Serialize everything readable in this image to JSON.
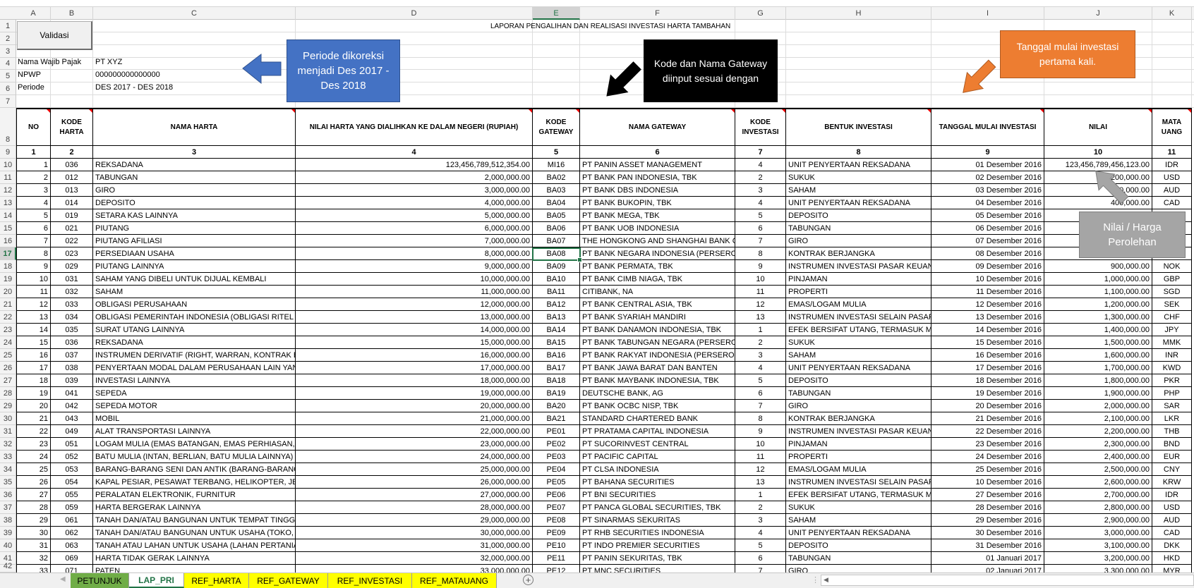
{
  "sheet": {
    "title": "LAPORAN PENGALIHAN DAN REALISASI INVESTASI HARTA TAMBAHAN",
    "validate_button": "Validasi",
    "selected_cell": "E17",
    "info": {
      "taxpayer_label": "Nama Wajib Pajak",
      "taxpayer_value": "PT XYZ",
      "npwp_label": "NPWP",
      "npwp_value": "000000000000000",
      "period_label": "Periode",
      "period_value": "DES 2017 - DES 2018"
    }
  },
  "columns": [
    "A",
    "B",
    "C",
    "D",
    "E",
    "F",
    "G",
    "H",
    "I",
    "J",
    "K"
  ],
  "row_numbers": [
    1,
    2,
    3,
    4,
    5,
    6,
    7,
    8,
    9,
    10,
    11,
    12,
    13,
    14,
    15,
    16,
    17,
    18,
    19,
    20,
    21,
    22,
    23,
    24,
    25,
    26,
    27,
    28,
    29,
    30,
    31,
    32,
    33,
    34,
    35,
    36,
    37,
    38,
    39,
    40,
    41,
    42
  ],
  "table_headers": [
    "NO",
    "KODE HARTA",
    "NAMA HARTA",
    "NILAI HARTA YANG DIALIHKAN KE DALAM NEGERI (RUPIAH)",
    "KODE GATEWAY",
    "NAMA GATEWAY",
    "KODE INVESTASI",
    "BENTUK INVESTASI",
    "TANGGAL MULAI INVESTASI",
    "NILAI",
    "MATA UANG"
  ],
  "column_numbers": [
    "1",
    "2",
    "3",
    "4",
    "5",
    "6",
    "7",
    "8",
    "9",
    "10",
    "11"
  ],
  "rows": [
    [
      "1",
      "036",
      "REKSADANA",
      "123,456,789,512,354.00",
      "MI16",
      "PT PANIN ASSET MANAGEMENT",
      "4",
      "UNIT PENYERTAAN REKSADANA",
      "01 Desember 2016",
      "123,456,789,456,123.00",
      "IDR"
    ],
    [
      "2",
      "012",
      "TABUNGAN",
      "2,000,000.00",
      "BA02",
      "PT BANK PAN INDONESIA, TBK",
      "2",
      "SUKUK",
      "02 Desember 2016",
      "200,000.00",
      "USD"
    ],
    [
      "3",
      "013",
      "GIRO",
      "3,000,000.00",
      "BA03",
      "PT BANK DBS INDONESIA",
      "3",
      "SAHAM",
      "03 Desember 2016",
      "300,000.00",
      "AUD"
    ],
    [
      "4",
      "014",
      "DEPOSITO",
      "4,000,000.00",
      "BA04",
      "PT BANK BUKOPIN, TBK",
      "4",
      "UNIT PENYERTAAN REKSADANA",
      "04 Desember 2016",
      "400,000.00",
      "CAD"
    ],
    [
      "5",
      "019",
      "SETARA KAS LAINNYA",
      "5,000,000.00",
      "BA05",
      "PT BANK MEGA, TBK",
      "5",
      "DEPOSITO",
      "05 Desember 2016",
      "",
      ""
    ],
    [
      "6",
      "021",
      "PIUTANG",
      "6,000,000.00",
      "BA06",
      "PT BANK UOB INDONESIA",
      "6",
      "TABUNGAN",
      "06 Desember 2016",
      "",
      ""
    ],
    [
      "7",
      "022",
      "PIUTANG AFILIASI",
      "7,000,000.00",
      "BA07",
      "THE HONGKONG AND SHANGHAI BANK CO",
      "7",
      "GIRO",
      "07 Desember 2016",
      "",
      ""
    ],
    [
      "8",
      "023",
      "PERSEDIAAN USAHA",
      "8,000,000.00",
      "BA08",
      "PT BANK NEGARA INDONESIA (PERSERO) T",
      "8",
      "KONTRAK BERJANGKA",
      "08 Desember 2016",
      "",
      ""
    ],
    [
      "9",
      "029",
      "PIUTANG LAINNYA",
      "9,000,000.00",
      "BA09",
      "PT BANK PERMATA, TBK",
      "9",
      "INSTRUMEN INVESTASI PASAR KEUANG",
      "09 Desember 2016",
      "900,000.00",
      "NOK"
    ],
    [
      "10",
      "031",
      "SAHAM YANG DIBELI UNTUK DIJUAL KEMBALI",
      "10,000,000.00",
      "BA10",
      "PT BANK CIMB NIAGA, TBK",
      "10",
      "PINJAMAN",
      "10 Desember 2016",
      "1,000,000.00",
      "GBP"
    ],
    [
      "11",
      "032",
      "SAHAM",
      "11,000,000.00",
      "BA11",
      "CITIBANK, NA",
      "11",
      "PROPERTI",
      "11 Desember 2016",
      "1,100,000.00",
      "SGD"
    ],
    [
      "12",
      "033",
      "OBLIGASI PERUSAHAAN",
      "12,000,000.00",
      "BA12",
      "PT BANK CENTRAL ASIA, TBK",
      "12",
      "EMAS/LOGAM MULIA",
      "12 Desember 2016",
      "1,200,000.00",
      "SEK"
    ],
    [
      "13",
      "034",
      "OBLIGASI PEMERINTAH INDONESIA (OBLIGASI RITEL IN",
      "13,000,000.00",
      "BA13",
      "PT BANK SYARIAH MANDIRI",
      "13",
      "INSTRUMEN INVESTASI SELAIN PASAR K",
      "13 Desember 2016",
      "1,300,000.00",
      "CHF"
    ],
    [
      "14",
      "035",
      "SURAT UTANG LAINNYA",
      "14,000,000.00",
      "BA14",
      "PT BANK DANAMON INDONESIA, TBK",
      "1",
      "EFEK BERSIFAT UTANG, TERMASUK ME",
      "14 Desember 2016",
      "1,400,000.00",
      "JPY"
    ],
    [
      "15",
      "036",
      "REKSADANA",
      "15,000,000.00",
      "BA15",
      "PT BANK TABUNGAN NEGARA (PERSERO) T",
      "2",
      "SUKUK",
      "15 Desember 2016",
      "1,500,000.00",
      "MMK"
    ],
    [
      "16",
      "037",
      "INSTRUMEN DERIVATIF (RIGHT, WARRAN, KONTRAK BE",
      "16,000,000.00",
      "BA16",
      "PT BANK RAKYAT INDONESIA (PERSERO) T",
      "3",
      "SAHAM",
      "16 Desember 2016",
      "1,600,000.00",
      "INR"
    ],
    [
      "17",
      "038",
      "PENYERTAAN MODAL DALAM PERUSAHAAN LAIN YANG",
      "17,000,000.00",
      "BA17",
      "PT BANK JAWA BARAT DAN BANTEN",
      "4",
      "UNIT PENYERTAAN REKSADANA",
      "17 Desember 2016",
      "1,700,000.00",
      "KWD"
    ],
    [
      "18",
      "039",
      "INVESTASI LAINNYA",
      "18,000,000.00",
      "BA18",
      "PT BANK MAYBANK INDONESIA, TBK",
      "5",
      "DEPOSITO",
      "18 Desember 2016",
      "1,800,000.00",
      "PKR"
    ],
    [
      "19",
      "041",
      "SEPEDA",
      "19,000,000.00",
      "BA19",
      "DEUTSCHE BANK, AG",
      "6",
      "TABUNGAN",
      "19 Desember 2016",
      "1,900,000.00",
      "PHP"
    ],
    [
      "20",
      "042",
      "SEPEDA MOTOR",
      "20,000,000.00",
      "BA20",
      "PT BANK OCBC NISP, TBK",
      "7",
      "GIRO",
      "20 Desember 2016",
      "2,000,000.00",
      "SAR"
    ],
    [
      "21",
      "043",
      "MOBIL",
      "21,000,000.00",
      "BA21",
      "STANDARD CHARTERED BANK",
      "8",
      "KONTRAK BERJANGKA",
      "21 Desember 2016",
      "2,100,000.00",
      "LKR"
    ],
    [
      "22",
      "049",
      "ALAT TRANSPORTASI LAINNYA",
      "22,000,000.00",
      "PE01",
      "PT PRATAMA CAPITAL INDONESIA",
      "9",
      "INSTRUMEN INVESTASI PASAR KEUANG",
      "22 Desember 2016",
      "2,200,000.00",
      "THB"
    ],
    [
      "23",
      "051",
      "LOGAM MULIA (EMAS BATANGAN, EMAS PERHIASAN, P",
      "23,000,000.00",
      "PE02",
      "PT SUCORINVEST CENTRAL",
      "10",
      "PINJAMAN",
      "23 Desember 2016",
      "2,300,000.00",
      "BND"
    ],
    [
      "24",
      "052",
      "BATU MULIA (INTAN, BERLIAN, BATU MULIA LAINNYA)",
      "24,000,000.00",
      "PE03",
      "PT PACIFIC CAPITAL",
      "11",
      "PROPERTI",
      "24 Desember 2016",
      "2,400,000.00",
      "EUR"
    ],
    [
      "25",
      "053",
      "BARANG-BARANG SENI DAN ANTIK (BARANG-BARANG S",
      "25,000,000.00",
      "PE04",
      "PT CLSA INDONESIA",
      "12",
      "EMAS/LOGAM MULIA",
      "25 Desember 2016",
      "2,500,000.00",
      "CNY"
    ],
    [
      "26",
      "054",
      "KAPAL PESIAR, PESAWAT TERBANG, HELIKOPTER, JETSK",
      "26,000,000.00",
      "PE05",
      "PT BAHANA SECURITIES",
      "13",
      "INSTRUMEN INVESTASI SELAIN PASAR K",
      "10 Desember 2016",
      "2,600,000.00",
      "KRW"
    ],
    [
      "27",
      "055",
      "PERALATAN ELEKTRONIK, FURNITUR",
      "27,000,000.00",
      "PE06",
      "PT BNI SECURITIES",
      "1",
      "EFEK BERSIFAT UTANG, TERMASUK ME",
      "27 Desember 2016",
      "2,700,000.00",
      "IDR"
    ],
    [
      "28",
      "059",
      "HARTA BERGERAK LAINNYA",
      "28,000,000.00",
      "PE07",
      "PT PANCA GLOBAL SECURITIES, TBK",
      "2",
      "SUKUK",
      "28 Desember 2016",
      "2,800,000.00",
      "USD"
    ],
    [
      "29",
      "061",
      "TANAH DAN/ATAU BANGUNAN UNTUK TEMPAT TINGGA",
      "29,000,000.00",
      "PE08",
      "PT SINARMAS SEKURITAS",
      "3",
      "SAHAM",
      "29 Desember 2016",
      "2,900,000.00",
      "AUD"
    ],
    [
      "30",
      "062",
      "TANAH DAN/ATAU BANGUNAN UNTUK USAHA (TOKO, P",
      "30,000,000.00",
      "PE09",
      "PT RHB SECURITIES INDONESIA",
      "4",
      "UNIT PENYERTAAN REKSADANA",
      "30 Desember 2016",
      "3,000,000.00",
      "CAD"
    ],
    [
      "31",
      "063",
      "TANAH ATAU LAHAN UNTUK USAHA (LAHAN PERTANIAN",
      "31,000,000.00",
      "PE10",
      "PT INDO PREMIER SECURITIES",
      "5",
      "DEPOSITO",
      "31 Desember 2016",
      "3,100,000.00",
      "DKK"
    ],
    [
      "32",
      "069",
      "HARTA TIDAK GERAK LAINNYA",
      "32,000,000.00",
      "PE11",
      "PT PANIN SEKURITAS, TBK",
      "6",
      "TABUNGAN",
      "01 Januari 2017",
      "3,200,000.00",
      "HKD"
    ],
    [
      "33",
      "071",
      "PATEN",
      "33,000,000.00",
      "PE12",
      "PT MNC SECURITIES",
      "7",
      "GIRO",
      "02 Januari 2017",
      "3,300,000.00",
      "MYR"
    ]
  ],
  "callouts": {
    "period": "Periode dikoreksi menjadi Des 2017 - Des 2018",
    "gateway": "Kode dan Nama Gateway diinput sesuai dengan",
    "start_date": "Tanggal mulai investasi pertama kali.",
    "value": "Nilai / Harga Perolehan"
  },
  "sheet_tabs": [
    {
      "label": "PETUNJUK",
      "color": "#70ad47",
      "active": false
    },
    {
      "label": "LAP_PRI",
      "color": "#ffffff",
      "active": true
    },
    {
      "label": "REF_HARTA",
      "color": "#ffff00",
      "active": false
    },
    {
      "label": "REF_GATEWAY",
      "color": "#ffff00",
      "active": false
    },
    {
      "label": "REF_INVESTASI",
      "color": "#ffff00",
      "active": false
    },
    {
      "label": "REF_MATAUANG",
      "color": "#ffff00",
      "active": false
    }
  ],
  "add_sheet_icon": "plus-circle-icon",
  "colors": {
    "accent": "#217346",
    "blue_callout": "#4472c4",
    "orange_callout": "#ed7d31",
    "gray_callout": "#a5a5a5",
    "comment_marker": "#ee0000"
  }
}
